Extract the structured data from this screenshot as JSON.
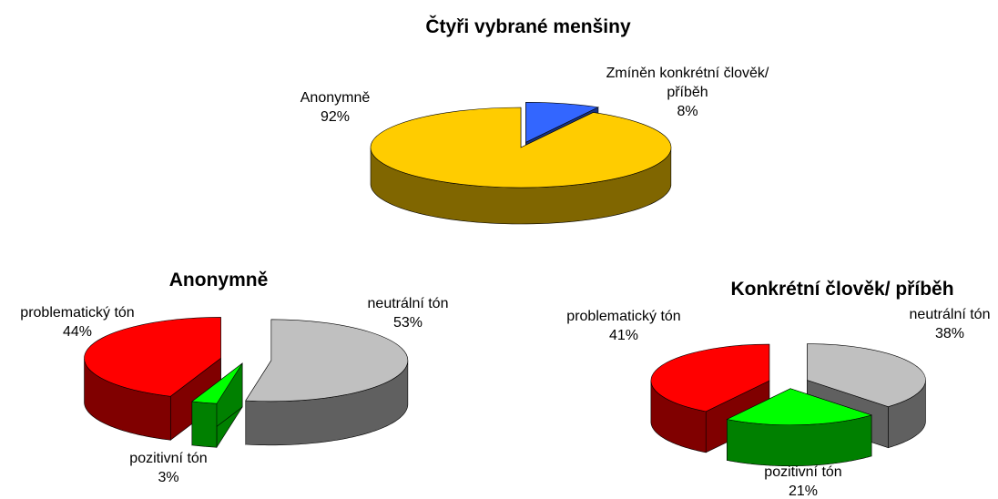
{
  "chart_data": [
    {
      "type": "pie",
      "title": "Čtyři vybrané menšiny",
      "categories": [
        "Zmíněn konkrétní člověk/ příběh",
        "Anonymně"
      ],
      "values": [
        8,
        92
      ],
      "value_labels": [
        "8%",
        "92%"
      ],
      "colors": [
        "#3366ff",
        "#ffcc00"
      ]
    },
    {
      "type": "pie",
      "title": "Anonymně",
      "categories": [
        "neutrální tón",
        "pozitivní tón",
        "problematický tón"
      ],
      "values": [
        53,
        3,
        44
      ],
      "value_labels": [
        "53%",
        "3%",
        "44%"
      ],
      "colors": [
        "#c0c0c0",
        "#00ff00",
        "#ff0000"
      ]
    },
    {
      "type": "pie",
      "title": "Konkrétní člověk/ příběh",
      "categories": [
        "neutrální tón",
        "pozitivní tón",
        "problematický tón"
      ],
      "values": [
        38,
        21,
        41
      ],
      "value_labels": [
        "38%",
        "21%",
        "41%"
      ],
      "colors": [
        "#c0c0c0",
        "#00ff00",
        "#ff0000"
      ]
    }
  ]
}
